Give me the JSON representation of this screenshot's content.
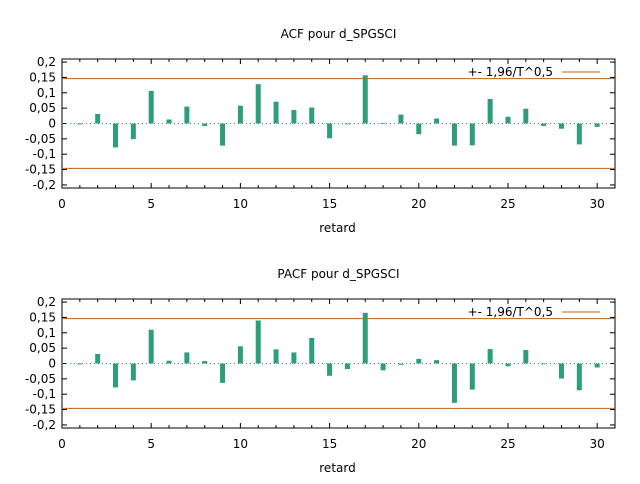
{
  "colors": {
    "bar": "#2e9e78",
    "band": "#b5651d",
    "axis": "#000000",
    "zero_line": "#2e9e78"
  },
  "chart_data": [
    {
      "type": "bar",
      "title": "ACF pour d_SPGSCI",
      "xlabel": "retard",
      "ylabel": "",
      "xlim": [
        0,
        31
      ],
      "ylim": [
        -0.21,
        0.21
      ],
      "x_ticks": [
        "0",
        "5",
        "10",
        "15",
        "20",
        "25",
        "30"
      ],
      "y_ticks": [
        "0,2",
        "0,15",
        "0,1",
        "0,05",
        "0",
        "-0,05",
        "-0,1",
        "-0,15",
        "-0,2"
      ],
      "legend_label": "+- 1,96/T^0,5",
      "legend_position": "top-right",
      "band": 0.146,
      "x": [
        1,
        2,
        3,
        4,
        5,
        6,
        7,
        8,
        9,
        10,
        11,
        12,
        13,
        14,
        15,
        16,
        17,
        18,
        19,
        20,
        21,
        22,
        23,
        24,
        25,
        26,
        27,
        28,
        29,
        30
      ],
      "values": [
        -0.003,
        0.031,
        -0.078,
        -0.051,
        0.106,
        0.013,
        0.055,
        -0.008,
        -0.072,
        0.058,
        0.128,
        0.071,
        0.044,
        0.052,
        -0.048,
        0.0,
        0.157,
        0.002,
        0.029,
        -0.035,
        0.016,
        -0.072,
        -0.071,
        0.08,
        0.022,
        0.048,
        -0.008,
        -0.017,
        -0.068,
        -0.011
      ]
    },
    {
      "type": "bar",
      "title": "PACF pour d_SPGSCI",
      "xlabel": "retard",
      "ylabel": "",
      "xlim": [
        0,
        31
      ],
      "ylim": [
        -0.21,
        0.21
      ],
      "x_ticks": [
        "0",
        "5",
        "10",
        "15",
        "20",
        "25",
        "30"
      ],
      "y_ticks": [
        "0,2",
        "0,15",
        "0,1",
        "0,05",
        "0",
        "-0,05",
        "-0,1",
        "-0,15",
        "-0,2"
      ],
      "legend_label": "+- 1,96/T^0,5",
      "legend_position": "top-right",
      "band": 0.146,
      "x": [
        1,
        2,
        3,
        4,
        5,
        6,
        7,
        8,
        9,
        10,
        11,
        12,
        13,
        14,
        15,
        16,
        17,
        18,
        19,
        20,
        21,
        22,
        23,
        24,
        25,
        26,
        27,
        28,
        29,
        30
      ],
      "values": [
        -0.003,
        0.031,
        -0.078,
        -0.055,
        0.11,
        0.009,
        0.036,
        0.008,
        -0.063,
        0.056,
        0.14,
        0.046,
        0.036,
        0.083,
        -0.04,
        -0.018,
        0.165,
        -0.022,
        -0.004,
        0.015,
        0.011,
        -0.128,
        -0.085,
        0.047,
        -0.009,
        0.044,
        0.0,
        -0.049,
        -0.087,
        -0.013
      ]
    }
  ]
}
